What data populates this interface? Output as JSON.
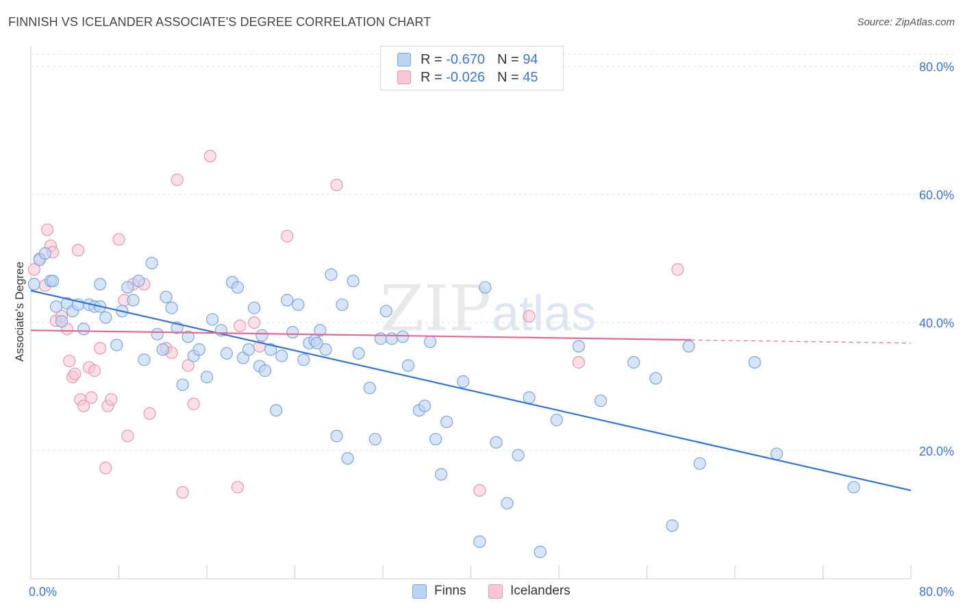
{
  "title": "FINNISH VS ICELANDER ASSOCIATE'S DEGREE CORRELATION CHART",
  "source": "Source: ZipAtlas.com",
  "watermark": {
    "zip": "ZIP",
    "atlas": "atlas"
  },
  "legend_top": {
    "rows": [
      {
        "r_label": "R =",
        "r_value": "-0.670",
        "n_label": "N =",
        "n_value": "94"
      },
      {
        "r_label": "R =",
        "r_value": "-0.026",
        "n_label": "N =",
        "n_value": "45"
      }
    ]
  },
  "legend_bottom": {
    "finns": "Finns",
    "icelanders": "Icelanders"
  },
  "colors": {
    "finns_fill": "#bcd3f2",
    "finns_stroke": "#7aa6e0",
    "finns_line": "#2f74d0",
    "icelanders_fill": "#f8c6d6",
    "icelanders_stroke": "#e996b2",
    "icelanders_line": "#e26890",
    "tick_label": "#3b76d4",
    "grid": "#dddddd"
  },
  "chart_data": {
    "type": "scatter",
    "title": "FINNISH VS ICELANDER ASSOCIATE'S DEGREE CORRELATION CHART",
    "xlabel": "",
    "ylabel": "Associate's Degree",
    "xlim": [
      0,
      80
    ],
    "ylim": [
      0,
      80
    ],
    "x_tick_labels": [
      "0.0%",
      "80.0%"
    ],
    "y_ticks": [
      {
        "value": 20,
        "label": "20.0%"
      },
      {
        "value": 40,
        "label": "40.0%"
      },
      {
        "value": 60,
        "label": "60.0%"
      },
      {
        "value": 80,
        "label": "80.0%"
      }
    ],
    "series": [
      {
        "name": "Finns",
        "r": -0.67,
        "n": 94,
        "trend": {
          "x0": 0.0,
          "y0": 45.0,
          "x1": 80.0,
          "y1": 13.8
        },
        "points": [
          [
            0.3,
            46.0
          ],
          [
            0.8,
            49.8
          ],
          [
            1.3,
            50.8
          ],
          [
            1.8,
            46.5
          ],
          [
            2.3,
            42.5
          ],
          [
            2.8,
            40.2
          ],
          [
            3.3,
            43.0
          ],
          [
            3.8,
            41.8
          ],
          [
            4.3,
            42.8
          ],
          [
            4.8,
            39.0
          ],
          [
            5.3,
            42.8
          ],
          [
            5.8,
            42.5
          ],
          [
            6.3,
            46.0
          ],
          [
            6.8,
            40.8
          ],
          [
            7.8,
            36.5
          ],
          [
            8.3,
            41.8
          ],
          [
            8.8,
            45.5
          ],
          [
            9.3,
            43.5
          ],
          [
            9.8,
            46.5
          ],
          [
            10.3,
            34.2
          ],
          [
            11.0,
            49.3
          ],
          [
            11.5,
            38.2
          ],
          [
            12.0,
            35.8
          ],
          [
            12.3,
            44.0
          ],
          [
            12.8,
            42.3
          ],
          [
            13.3,
            39.2
          ],
          [
            13.8,
            30.3
          ],
          [
            14.3,
            37.8
          ],
          [
            14.8,
            34.8
          ],
          [
            15.3,
            35.8
          ],
          [
            16.0,
            31.5
          ],
          [
            16.5,
            40.5
          ],
          [
            17.3,
            38.8
          ],
          [
            17.8,
            35.2
          ],
          [
            18.3,
            46.3
          ],
          [
            18.8,
            45.5
          ],
          [
            19.3,
            34.5
          ],
          [
            19.8,
            35.8
          ],
          [
            20.3,
            42.3
          ],
          [
            20.8,
            33.2
          ],
          [
            21.3,
            32.5
          ],
          [
            21.8,
            35.8
          ],
          [
            22.3,
            26.3
          ],
          [
            22.8,
            34.8
          ],
          [
            23.3,
            43.5
          ],
          [
            23.8,
            38.5
          ],
          [
            24.3,
            42.8
          ],
          [
            24.8,
            34.2
          ],
          [
            25.3,
            36.8
          ],
          [
            25.8,
            37.2
          ],
          [
            26.3,
            38.8
          ],
          [
            26.8,
            35.8
          ],
          [
            27.3,
            47.5
          ],
          [
            27.8,
            22.3
          ],
          [
            28.3,
            42.8
          ],
          [
            28.8,
            18.8
          ],
          [
            29.3,
            46.5
          ],
          [
            29.8,
            35.2
          ],
          [
            30.8,
            29.8
          ],
          [
            31.3,
            21.8
          ],
          [
            31.8,
            37.5
          ],
          [
            32.3,
            41.8
          ],
          [
            32.8,
            37.5
          ],
          [
            33.8,
            37.8
          ],
          [
            34.3,
            33.3
          ],
          [
            35.3,
            26.3
          ],
          [
            35.8,
            27.0
          ],
          [
            36.3,
            37.0
          ],
          [
            36.8,
            21.8
          ],
          [
            37.3,
            16.3
          ],
          [
            37.8,
            24.5
          ],
          [
            39.3,
            30.8
          ],
          [
            40.8,
            5.8
          ],
          [
            41.3,
            45.5
          ],
          [
            42.3,
            21.3
          ],
          [
            43.3,
            11.8
          ],
          [
            44.3,
            19.3
          ],
          [
            45.3,
            28.3
          ],
          [
            46.3,
            4.2
          ],
          [
            47.8,
            24.8
          ],
          [
            49.8,
            36.3
          ],
          [
            51.8,
            27.8
          ],
          [
            54.8,
            33.8
          ],
          [
            56.8,
            31.3
          ],
          [
            58.3,
            8.3
          ],
          [
            59.8,
            36.3
          ],
          [
            60.8,
            18.0
          ],
          [
            65.8,
            33.8
          ],
          [
            67.8,
            19.5
          ],
          [
            74.8,
            14.3
          ],
          [
            26.0,
            36.8
          ],
          [
            21.0,
            38.0
          ],
          [
            6.3,
            42.5
          ],
          [
            2.0,
            46.5
          ]
        ]
      },
      {
        "name": "Icelanders",
        "r": -0.026,
        "n": 45,
        "trend": {
          "x0": 0.0,
          "y0": 38.8,
          "x1": 60.0,
          "y1": 37.3,
          "dashed_to_x": 80.0,
          "dashed_to_y": 36.8
        },
        "points": [
          [
            0.3,
            48.3
          ],
          [
            0.8,
            50.0
          ],
          [
            1.3,
            45.8
          ],
          [
            1.5,
            54.5
          ],
          [
            1.8,
            52.0
          ],
          [
            2.0,
            51.0
          ],
          [
            2.3,
            40.3
          ],
          [
            2.8,
            41.0
          ],
          [
            3.3,
            39.0
          ],
          [
            3.5,
            34.0
          ],
          [
            3.8,
            31.5
          ],
          [
            4.0,
            32.0
          ],
          [
            4.3,
            51.3
          ],
          [
            4.5,
            28.0
          ],
          [
            4.8,
            27.0
          ],
          [
            5.3,
            33.0
          ],
          [
            5.5,
            28.3
          ],
          [
            5.8,
            32.5
          ],
          [
            6.3,
            36.0
          ],
          [
            6.8,
            17.3
          ],
          [
            7.0,
            27.0
          ],
          [
            7.3,
            28.0
          ],
          [
            8.0,
            53.0
          ],
          [
            8.5,
            43.5
          ],
          [
            8.8,
            22.3
          ],
          [
            9.3,
            46.0
          ],
          [
            10.3,
            46.0
          ],
          [
            10.8,
            25.8
          ],
          [
            12.3,
            36.0
          ],
          [
            12.8,
            35.3
          ],
          [
            13.3,
            62.3
          ],
          [
            13.8,
            13.5
          ],
          [
            14.3,
            33.3
          ],
          [
            14.8,
            27.3
          ],
          [
            16.3,
            66.0
          ],
          [
            18.8,
            14.3
          ],
          [
            20.3,
            40.0
          ],
          [
            20.8,
            36.3
          ],
          [
            23.3,
            53.5
          ],
          [
            27.8,
            61.5
          ],
          [
            40.8,
            13.8
          ],
          [
            45.3,
            41.0
          ],
          [
            49.8,
            33.8
          ],
          [
            58.8,
            48.3
          ],
          [
            19.0,
            39.5
          ]
        ]
      }
    ]
  }
}
